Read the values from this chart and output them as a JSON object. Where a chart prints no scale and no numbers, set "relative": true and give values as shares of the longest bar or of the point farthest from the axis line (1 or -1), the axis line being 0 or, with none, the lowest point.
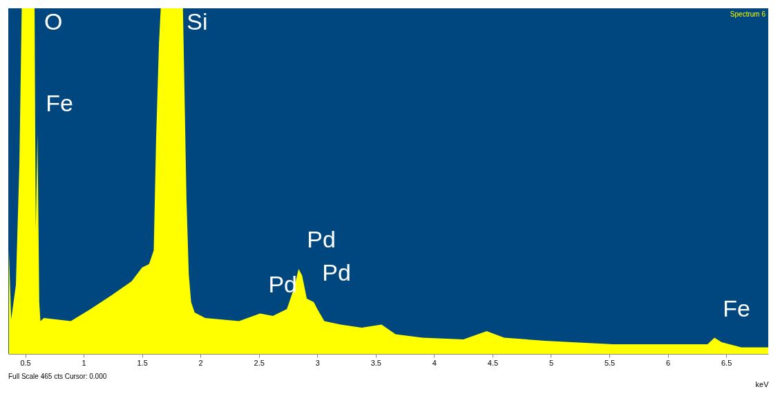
{
  "chart_data": {
    "type": "area",
    "title": "Spectrum 6",
    "xlabel": "keV",
    "relative": true,
    "x": [
      0.36,
      0.38,
      0.42,
      0.45,
      0.47,
      0.52,
      0.58,
      0.59,
      0.605,
      0.62,
      0.63,
      0.66,
      0.89,
      1.06,
      1.24,
      1.41,
      1.5,
      1.56,
      1.6,
      1.62,
      1.645,
      1.66,
      1.74,
      1.85,
      1.88,
      1.9,
      1.92,
      1.95,
      2.04,
      2.33,
      2.51,
      2.62,
      2.74,
      2.8,
      2.84,
      2.87,
      2.91,
      2.94,
      2.97,
      3.0,
      3.06,
      3.2,
      3.38,
      3.55,
      3.67,
      3.9,
      4.25,
      4.45,
      4.6,
      4.95,
      5.53,
      6.11,
      6.34,
      6.4,
      6.46,
      6.63,
      6.86
    ],
    "series": [
      {
        "color": "#ffff00",
        "values": [
          0.3,
          0.1,
          0.2,
          0.55,
          1,
          1,
          1,
          0.36,
          0.64,
          0.15,
          0.095,
          0.104,
          0.095,
          0.13,
          0.17,
          0.21,
          0.25,
          0.26,
          0.3,
          0.62,
          0.9,
          1,
          1,
          1,
          0.45,
          0.23,
          0.15,
          0.12,
          0.104,
          0.095,
          0.117,
          0.11,
          0.13,
          0.19,
          0.246,
          0.227,
          0.16,
          0.155,
          0.15,
          0.13,
          0.095,
          0.085,
          0.076,
          0.085,
          0.057,
          0.047,
          0.042,
          0.066,
          0.047,
          0.038,
          0.028,
          0.028,
          0.028,
          0.047,
          0.034,
          0.019,
          0.019
        ]
      }
    ],
    "xlim": [
      0.355,
      6.86
    ],
    "xticks": [
      0.5,
      1,
      1.5,
      2,
      2.5,
      3,
      3.5,
      4,
      4.5,
      5,
      5.5,
      6,
      6.5
    ],
    "grid": false,
    "annotations": [
      {
        "text": "O",
        "x": 0.52,
        "y": 1
      },
      {
        "text": "Si",
        "x": 1.74,
        "y": 1
      },
      {
        "text": "Fe",
        "x": 0.605,
        "y": 0.64
      },
      {
        "text": "Pd",
        "x": 2.51,
        "y": 0.117
      },
      {
        "text": "Pd",
        "x": 2.84,
        "y": 0.246
      },
      {
        "text": "Pd",
        "x": 2.97,
        "y": 0.15
      },
      {
        "text": "Fe",
        "x": 6.4,
        "y": 0.047
      },
      "Full Scale 465 cts Cursor: 0.000"
    ]
  }
}
